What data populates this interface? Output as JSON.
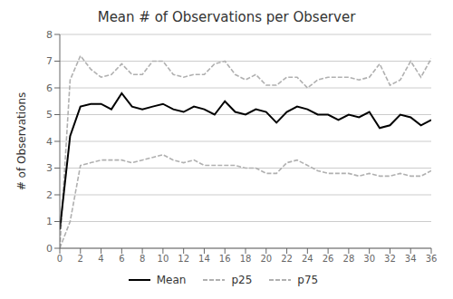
{
  "chart_data": {
    "type": "line",
    "title": "Mean # of Observations per Observer",
    "ylabel": "# of Observations",
    "x": [
      0,
      1,
      2,
      3,
      4,
      5,
      6,
      7,
      8,
      9,
      10,
      11,
      12,
      13,
      14,
      15,
      16,
      17,
      18,
      19,
      20,
      21,
      22,
      23,
      24,
      25,
      26,
      27,
      28,
      29,
      30,
      31,
      32,
      33,
      34,
      35,
      36
    ],
    "xlim": [
      0,
      36
    ],
    "ylim": [
      0,
      8
    ],
    "xticks": [
      0,
      2,
      4,
      6,
      8,
      10,
      12,
      14,
      16,
      18,
      20,
      22,
      24,
      26,
      28,
      30,
      32,
      34,
      36
    ],
    "yticks": [
      0,
      1,
      2,
      3,
      4,
      5,
      6,
      7,
      8
    ],
    "grid": "y",
    "legend": "bottom",
    "series": [
      {
        "name": "Mean",
        "color": "#000000",
        "line_style": "solid",
        "values": [
          0.7,
          4.2,
          5.3,
          5.4,
          5.4,
          5.2,
          5.8,
          5.3,
          5.2,
          5.3,
          5.4,
          5.2,
          5.1,
          5.3,
          5.2,
          5.0,
          5.5,
          5.1,
          5.0,
          5.2,
          5.1,
          4.7,
          5.1,
          5.3,
          5.2,
          5.0,
          5.0,
          4.8,
          5.0,
          4.9,
          5.1,
          4.5,
          4.6,
          5.0,
          4.9,
          4.6,
          4.8
        ]
      },
      {
        "name": "p25",
        "color": "#b0b0b0",
        "line_style": "dashed",
        "values": [
          0.0,
          1.0,
          3.1,
          3.2,
          3.3,
          3.3,
          3.3,
          3.2,
          3.3,
          3.4,
          3.5,
          3.3,
          3.2,
          3.3,
          3.1,
          3.1,
          3.1,
          3.1,
          3.0,
          3.0,
          2.8,
          2.8,
          3.2,
          3.3,
          3.1,
          2.9,
          2.8,
          2.8,
          2.8,
          2.7,
          2.8,
          2.7,
          2.7,
          2.8,
          2.7,
          2.7,
          2.9
        ]
      },
      {
        "name": "p75",
        "color": "#b0b0b0",
        "line_style": "dashed",
        "values": [
          0.0,
          6.3,
          7.2,
          6.7,
          6.4,
          6.5,
          6.9,
          6.5,
          6.5,
          7.0,
          7.0,
          6.5,
          6.4,
          6.5,
          6.5,
          6.9,
          7.0,
          6.5,
          6.3,
          6.5,
          6.1,
          6.1,
          6.4,
          6.4,
          6.0,
          6.3,
          6.4,
          6.4,
          6.4,
          6.3,
          6.4,
          6.9,
          6.1,
          6.3,
          7.0,
          6.4,
          7.1
        ]
      }
    ]
  }
}
